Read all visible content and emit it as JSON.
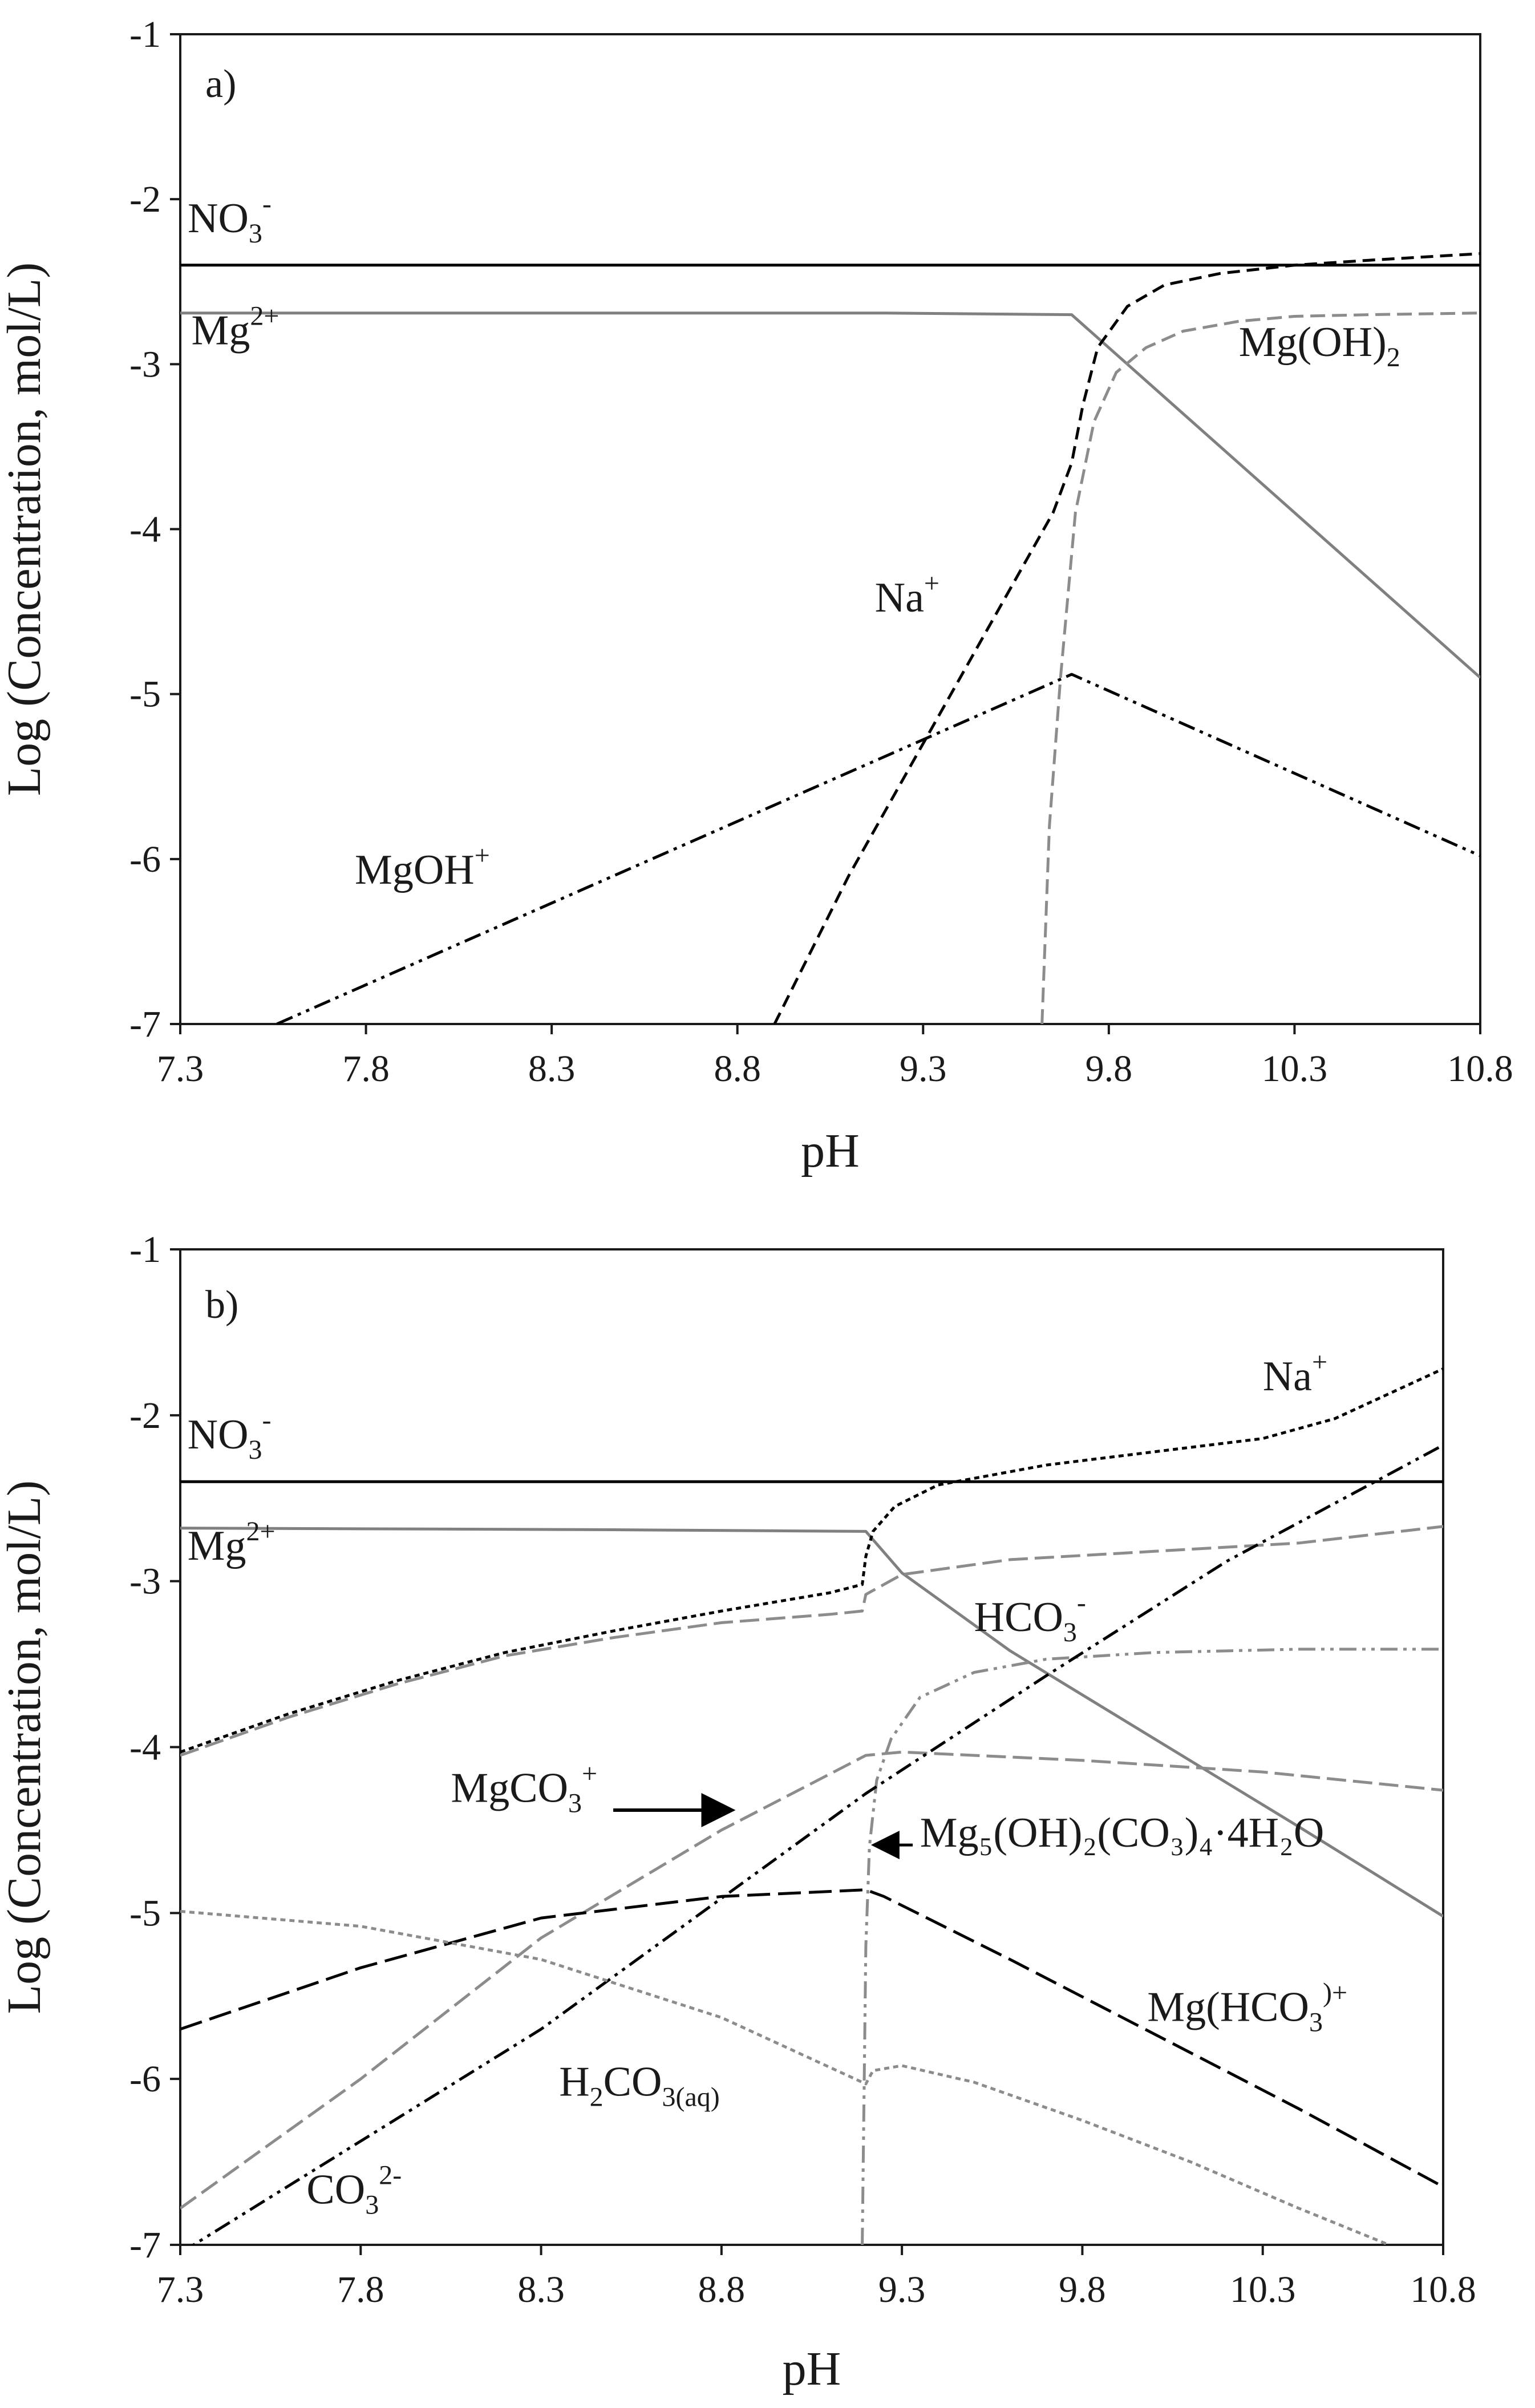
{
  "chart_data": [
    {
      "type": "line",
      "panel": "a)",
      "xlabel": "pH",
      "ylabel": "Log (Concentration, mol/L)",
      "xlim": [
        7.3,
        10.8
      ],
      "ylim": [
        -7,
        -1
      ],
      "xticks": [
        "7.3",
        "7.8",
        "8.3",
        "8.8",
        "9.3",
        "9.8",
        "10.3",
        "10.8"
      ],
      "yticks": [
        "-1",
        "-2",
        "-3",
        "-4",
        "-5",
        "-6",
        "-7"
      ],
      "series": [
        {
          "name": "NO3-",
          "label": {
            "base": "NO",
            "sub": "3",
            "sup": "-"
          },
          "color": "#000000",
          "dash": "",
          "x": [
            7.3,
            10.8
          ],
          "y": [
            -2.4,
            -2.4
          ],
          "label_pos": [
            7.32,
            -2.2
          ]
        },
        {
          "name": "Mg2+",
          "label": {
            "base": "Mg",
            "sup": "2+"
          },
          "color": "#808080",
          "dash": "",
          "x": [
            7.3,
            9.2,
            9.7,
            10.8
          ],
          "y": [
            -2.69,
            -2.69,
            -2.7,
            -4.9
          ],
          "label_pos": [
            7.33,
            -2.88
          ]
        },
        {
          "name": "Na+",
          "label": {
            "base": "Na",
            "sup": "+"
          },
          "color": "#000000",
          "dash": "22,12",
          "x": [
            8.9,
            9.1,
            9.3,
            9.5,
            9.65,
            9.7,
            9.73,
            9.77,
            9.85,
            9.95,
            10.1,
            10.3,
            10.5,
            10.8
          ],
          "y": [
            -7.0,
            -6.1,
            -5.3,
            -4.5,
            -3.9,
            -3.6,
            -3.25,
            -2.9,
            -2.65,
            -2.52,
            -2.45,
            -2.4,
            -2.37,
            -2.33
          ],
          "label_pos": [
            9.17,
            -4.5
          ]
        },
        {
          "name": "Mg(OH)2",
          "label": {
            "base": "Mg(OH)",
            "sub": "2"
          },
          "color": "#8c8c8c",
          "dash": "26,12",
          "x": [
            9.62,
            9.64,
            9.67,
            9.71,
            9.76,
            9.82,
            9.9,
            10.0,
            10.15,
            10.3,
            10.5,
            10.8
          ],
          "y": [
            -7.0,
            -5.8,
            -4.9,
            -3.9,
            -3.35,
            -3.05,
            -2.9,
            -2.8,
            -2.74,
            -2.71,
            -2.7,
            -2.69
          ],
          "label_pos": [
            10.15,
            -2.95
          ]
        },
        {
          "name": "MgOH+",
          "label": {
            "base": "MgOH",
            "sup": "+"
          },
          "color": "#000000",
          "dash": "30,10,6,10,6,10",
          "x": [
            7.56,
            9.7,
            10.8
          ],
          "y": [
            -7.0,
            -4.88,
            -5.98
          ],
          "label_pos": [
            7.77,
            -6.15
          ]
        }
      ]
    },
    {
      "type": "line",
      "panel": "b)",
      "xlabel": "pH",
      "ylabel": "Log (Concentration, mol/L)",
      "xlim": [
        7.3,
        10.8
      ],
      "ylim": [
        -7,
        -1
      ],
      "xticks": [
        "7.3",
        "7.8",
        "8.3",
        "8.8",
        "9.3",
        "9.8",
        "10.3",
        "10.8"
      ],
      "yticks": [
        "-1",
        "-2",
        "-3",
        "-4",
        "-5",
        "-6",
        "-7"
      ],
      "series": [
        {
          "name": "NO3-",
          "label": {
            "base": "NO",
            "sub": "3",
            "sup": "-"
          },
          "color": "#000000",
          "dash": "",
          "x": [
            7.3,
            10.8
          ],
          "y": [
            -2.4,
            -2.4
          ],
          "label_pos": [
            7.32,
            -2.2
          ]
        },
        {
          "name": "Mg2+",
          "label": {
            "base": "Mg",
            "sup": "2+"
          },
          "color": "#808080",
          "dash": "",
          "x": [
            7.3,
            8.5,
            9.2,
            9.3,
            9.6,
            10.0,
            10.4,
            10.8
          ],
          "y": [
            -2.68,
            -2.69,
            -2.7,
            -2.95,
            -3.42,
            -3.95,
            -4.48,
            -5.02
          ],
          "label_pos": [
            7.32,
            -2.87
          ]
        },
        {
          "name": "Na+",
          "label": {
            "base": "Na",
            "sup": "+"
          },
          "color": "#000000",
          "dash": "9,7",
          "x": [
            7.3,
            7.6,
            7.9,
            8.2,
            8.5,
            8.8,
            9.1,
            9.19,
            9.2,
            9.22,
            9.28,
            9.4,
            9.7,
            10.0,
            10.3,
            10.5,
            10.8
          ],
          "y": [
            -4.03,
            -3.8,
            -3.6,
            -3.43,
            -3.3,
            -3.18,
            -3.07,
            -3.02,
            -2.85,
            -2.7,
            -2.55,
            -2.42,
            -2.3,
            -2.22,
            -2.14,
            -2.02,
            -1.72
          ],
          "label_pos": [
            10.3,
            -1.85
          ]
        },
        {
          "name": "HCO3-",
          "label": {
            "base": "HCO",
            "sub": "3",
            "sup": "-"
          },
          "color": "#8c8c8c",
          "dash": "34,12",
          "x": [
            7.3,
            7.6,
            7.9,
            8.2,
            8.5,
            8.8,
            9.1,
            9.19,
            9.2,
            9.3,
            9.6,
            10.0,
            10.4,
            10.8
          ],
          "y": [
            -4.05,
            -3.82,
            -3.62,
            -3.45,
            -3.34,
            -3.25,
            -3.2,
            -3.18,
            -3.08,
            -2.96,
            -2.87,
            -2.82,
            -2.77,
            -2.67
          ],
          "label_pos": [
            9.5,
            -3.3
          ]
        },
        {
          "name": "MgCO3+",
          "label": {
            "base": "MgCO",
            "sub": "3",
            "sup": "+"
          },
          "color": "#8c8c8c",
          "dash": "34,12",
          "x": [
            7.3,
            7.8,
            8.3,
            8.8,
            9.2,
            9.3,
            9.8,
            10.3,
            10.8
          ],
          "y": [
            -6.78,
            -6.0,
            -5.15,
            -4.5,
            -4.05,
            -4.03,
            -4.08,
            -4.15,
            -4.26
          ],
          "label_pos": [
            8.05,
            -4.33
          ]
        },
        {
          "name": "Mg5(OH)2(CO3)4·4H2O",
          "label": {
            "base": "Mg₅(OH)₂(CO₃)₄·4H₂O"
          },
          "color": "#8c8c8c",
          "dash": "30,10,6,10,6,10",
          "x": [
            9.19,
            9.2,
            9.21,
            9.23,
            9.27,
            9.35,
            9.5,
            9.7,
            10.0,
            10.4,
            10.8
          ],
          "y": [
            -7.0,
            -5.2,
            -4.6,
            -4.2,
            -3.95,
            -3.7,
            -3.55,
            -3.47,
            -3.43,
            -3.41,
            -3.41
          ],
          "label_pos": [
            9.35,
            -4.6
          ]
        },
        {
          "name": "CO32-",
          "label": {
            "base": "CO",
            "sub": "3",
            "sup": "2-"
          },
          "color": "#000000",
          "dash": "30,10,6,10,6,10",
          "x": [
            7.3,
            8.3,
            9.2,
            9.7,
            10.2,
            10.8
          ],
          "y": [
            -7.05,
            -5.7,
            -4.28,
            -3.57,
            -2.88,
            -2.18
          ],
          "label_pos": [
            7.65,
            -6.75
          ]
        },
        {
          "name": "Mg(HCO3)+",
          "label": {
            "base": "Mg(HCO",
            "sub": "3",
            "sup": ")+"
          },
          "color": "#000000",
          "dash": "40,14",
          "x": [
            7.3,
            7.8,
            8.3,
            8.8,
            9.2,
            9.25,
            9.6,
            10.0,
            10.4,
            10.8
          ],
          "y": [
            -5.7,
            -5.33,
            -5.03,
            -4.9,
            -4.86,
            -4.9,
            -5.28,
            -5.73,
            -6.18,
            -6.65
          ],
          "label_pos": [
            9.98,
            -5.65
          ]
        },
        {
          "name": "H2CO3(aq)",
          "label": {
            "base": "H",
            "sub": "2",
            "mid": "CO",
            "sub2": "3(aq)"
          },
          "color": "#8c8c8c",
          "dash": "9,7",
          "x": [
            7.3,
            7.8,
            8.3,
            8.8,
            9.2,
            9.22,
            9.3,
            9.5,
            9.8,
            10.1,
            10.4,
            10.65
          ],
          "y": [
            -4.99,
            -5.08,
            -5.28,
            -5.63,
            -6.03,
            -5.95,
            -5.92,
            -6.02,
            -6.25,
            -6.5,
            -6.78,
            -7.0
          ],
          "label_pos": [
            8.35,
            -6.1
          ]
        }
      ]
    }
  ]
}
